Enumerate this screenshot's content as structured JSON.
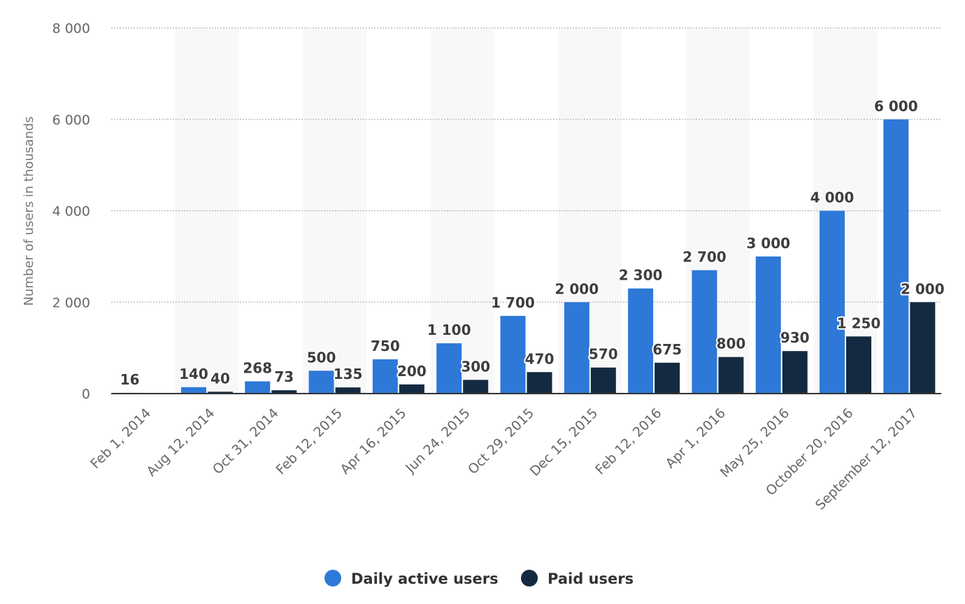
{
  "chart_data": {
    "type": "bar",
    "title": "",
    "xlabel": "",
    "ylabel": "Number of users in thousands",
    "ylim": [
      0,
      8000
    ],
    "yticks": [
      0,
      2000,
      4000,
      6000,
      8000
    ],
    "ytick_labels": [
      "0",
      "2 000",
      "4 000",
      "6 000",
      "8 000"
    ],
    "grid": true,
    "legend_position": "bottom-center",
    "categories": [
      "Feb 1, 2014",
      "Aug 12, 2014",
      "Oct 31, 2014",
      "Feb 12, 2015",
      "Apr 16, 2015",
      "Jun 24, 2015",
      "Oct 29, 2015",
      "Dec 15, 2015",
      "Feb 12, 2016",
      "Apr 1, 2016",
      "May 25, 2016",
      "October 20, 2016",
      "September 12, 2017"
    ],
    "series": [
      {
        "name": "Daily active users",
        "color": "#2e78d8",
        "values": [
          16,
          140,
          268,
          500,
          750,
          1100,
          1700,
          2000,
          2300,
          2700,
          3000,
          4000,
          6000
        ],
        "labels": [
          "16",
          "140",
          "268",
          "500",
          "750",
          "1 100",
          "1 700",
          "2 000",
          "2 300",
          "2 700",
          "3 000",
          "4 000",
          "6 000"
        ]
      },
      {
        "name": "Paid users",
        "color": "#142a40",
        "values": [
          null,
          40,
          73,
          135,
          200,
          300,
          470,
          570,
          675,
          800,
          930,
          1250,
          2000
        ],
        "labels": [
          null,
          "40",
          "73",
          "135",
          "200",
          "300",
          "470",
          "570",
          "675",
          "800",
          "930",
          "1 250",
          "2 000"
        ]
      }
    ]
  }
}
